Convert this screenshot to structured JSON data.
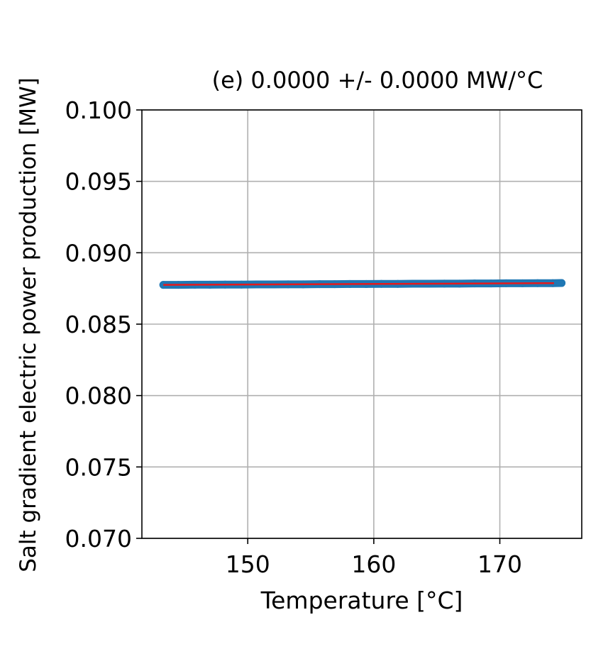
{
  "chart_data": {
    "type": "scatter",
    "title": "(e)   0.0000 +/- 0.0000  MW/°C",
    "xlabel": "Temperature [°C]",
    "ylabel": "Salt gradient electric power production [MW]",
    "xlim": [
      141.6,
      176.5
    ],
    "ylim": [
      0.07,
      0.1
    ],
    "xticks": [
      150,
      160,
      170
    ],
    "yticks": [
      0.07,
      0.075,
      0.08,
      0.085,
      0.09,
      0.095,
      0.1
    ],
    "xtick_labels": [
      "150",
      "160",
      "170"
    ],
    "ytick_labels": [
      "0.070",
      "0.075",
      "0.080",
      "0.085",
      "0.090",
      "0.095",
      "0.100"
    ],
    "grid": true,
    "series": [
      {
        "kind": "scatter",
        "color": "#1f77b4",
        "x": [
          143.3,
          144.5,
          145.8,
          147.0,
          148.2,
          149.5,
          150.7,
          152.0,
          153.2,
          154.4,
          155.7,
          156.9,
          158.1,
          159.4,
          160.6,
          161.9,
          163.1,
          164.3,
          165.6,
          166.8,
          168.0,
          169.3,
          170.5,
          171.8,
          173.0,
          174.2,
          174.9
        ],
        "y": [
          0.08775,
          0.08775,
          0.08776,
          0.08776,
          0.08777,
          0.08777,
          0.08778,
          0.08778,
          0.08779,
          0.08779,
          0.0878,
          0.0878,
          0.08781,
          0.08781,
          0.08782,
          0.08782,
          0.08783,
          0.08783,
          0.08784,
          0.08784,
          0.08785,
          0.08785,
          0.08786,
          0.08786,
          0.08787,
          0.08787,
          0.08788
        ]
      },
      {
        "kind": "line",
        "color": "#e41a1c",
        "x": [
          143.3,
          174.3
        ],
        "y": [
          0.08775,
          0.08787
        ]
      }
    ]
  }
}
